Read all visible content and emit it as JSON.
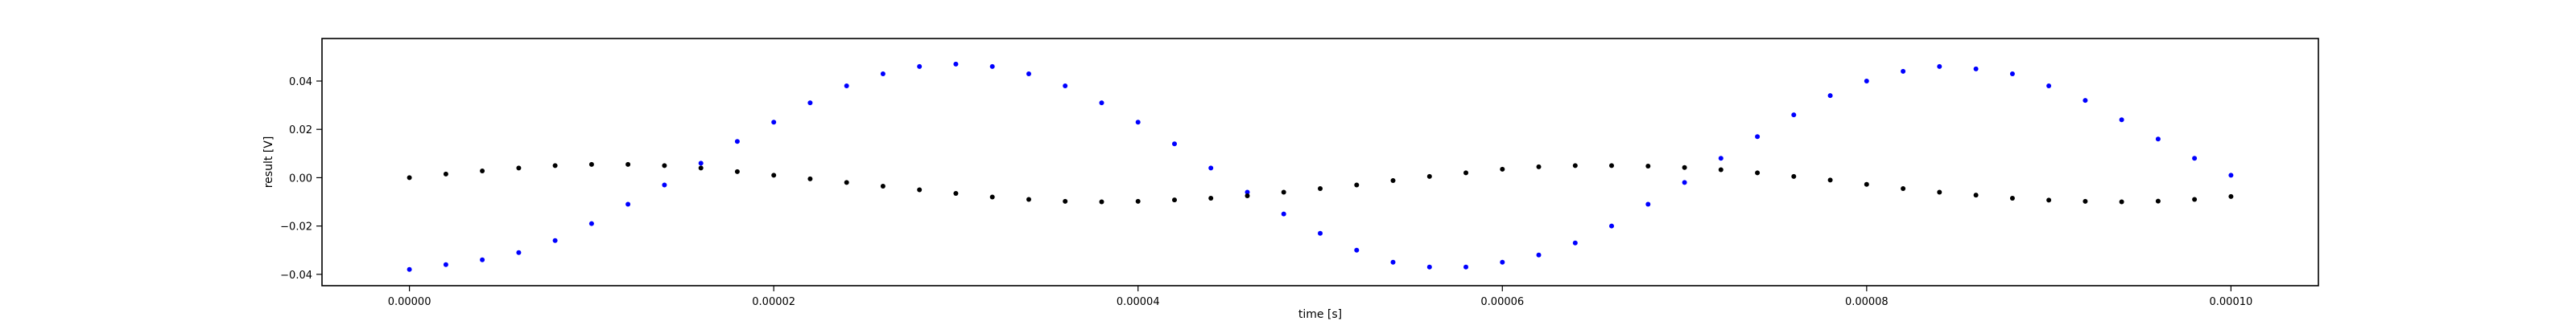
{
  "chart_data": {
    "type": "scatter",
    "title": "",
    "xlabel": "time [s]",
    "ylabel": "result [V]",
    "xlim": [
      -4.8e-06,
      0.0001048
    ],
    "ylim": [
      -0.0447,
      0.0576
    ],
    "grid": false,
    "x_ticks": [
      "0.00000",
      "0.00002",
      "0.00004",
      "0.00006",
      "0.00008",
      "0.00010"
    ],
    "y_ticks": [
      "−0.04",
      "−0.02",
      "0.00",
      "0.02",
      "0.04"
    ],
    "x_tick_values": [
      0,
      2e-05,
      4e-05,
      6e-05,
      8e-05,
      0.0001
    ],
    "y_tick_values": [
      -0.04,
      -0.02,
      0,
      0.02,
      0.04
    ],
    "series": [
      {
        "color": "#0000ff",
        "marker": "dot",
        "x": [
          0,
          2e-06,
          4e-06,
          6e-06,
          8e-06,
          1e-05,
          1.2e-05,
          1.4e-05,
          1.6e-05,
          1.8e-05,
          2e-05,
          2.2e-05,
          2.4e-05,
          2.6e-05,
          2.8e-05,
          3e-05,
          3.2e-05,
          3.4e-05,
          3.6e-05,
          3.8e-05,
          4e-05,
          4.2e-05,
          4.4e-05,
          4.6e-05,
          4.8e-05,
          5e-05,
          5.2e-05,
          5.4e-05,
          5.6e-05,
          5.8e-05,
          6e-05,
          6.2e-05,
          6.4e-05,
          6.6e-05,
          6.8e-05,
          7e-05,
          7.2e-05,
          7.4e-05,
          7.6e-05,
          7.8e-05,
          8e-05,
          8.2e-05,
          8.4e-05,
          8.6e-05,
          8.8e-05,
          9e-05,
          9.2e-05,
          9.4e-05,
          9.6e-05,
          9.8e-05,
          0.0001
        ],
        "y": [
          -0.038,
          -0.036,
          -0.034,
          -0.031,
          -0.026,
          -0.019,
          -0.011,
          -0.003,
          0.006,
          0.015,
          0.023,
          0.031,
          0.038,
          0.043,
          0.046,
          0.047,
          0.046,
          0.043,
          0.038,
          0.031,
          0.023,
          0.014,
          0.004,
          -0.006,
          -0.015,
          -0.023,
          -0.03,
          -0.035,
          -0.037,
          -0.037,
          -0.035,
          -0.032,
          -0.027,
          -0.02,
          -0.011,
          -0.002,
          0.008,
          0.017,
          0.026,
          0.034,
          0.04,
          0.044,
          0.046,
          0.045,
          0.043,
          0.038,
          0.032,
          0.024,
          0.016,
          0.008,
          0.001
        ]
      },
      {
        "color": "#000000",
        "marker": "dot",
        "x": [
          0,
          2e-06,
          4e-06,
          6e-06,
          8e-06,
          1e-05,
          1.2e-05,
          1.4e-05,
          1.6e-05,
          1.8e-05,
          2e-05,
          2.2e-05,
          2.4e-05,
          2.6e-05,
          2.8e-05,
          3e-05,
          3.2e-05,
          3.4e-05,
          3.6e-05,
          3.8e-05,
          4e-05,
          4.2e-05,
          4.4e-05,
          4.6e-05,
          4.8e-05,
          5e-05,
          5.2e-05,
          5.4e-05,
          5.6e-05,
          5.8e-05,
          6e-05,
          6.2e-05,
          6.4e-05,
          6.6e-05,
          6.8e-05,
          7e-05,
          7.2e-05,
          7.4e-05,
          7.6e-05,
          7.8e-05,
          8e-05,
          8.2e-05,
          8.4e-05,
          8.6e-05,
          8.8e-05,
          9e-05,
          9.2e-05,
          9.4e-05,
          9.6e-05,
          9.8e-05,
          0.0001
        ],
        "y": [
          0,
          0.0015,
          0.0028,
          0.004,
          0.005,
          0.0055,
          0.0055,
          0.005,
          0.004,
          0.0025,
          0.001,
          -0.0005,
          -0.002,
          -0.0035,
          -0.005,
          -0.0065,
          -0.008,
          -0.009,
          -0.0098,
          -0.01,
          -0.0098,
          -0.0092,
          -0.0085,
          -0.0075,
          -0.006,
          -0.0045,
          -0.003,
          -0.0012,
          0.0005,
          0.002,
          0.0035,
          0.0045,
          0.005,
          0.005,
          0.0048,
          0.0042,
          0.0033,
          0.002,
          0.0005,
          -0.001,
          -0.0028,
          -0.0045,
          -0.006,
          -0.0072,
          -0.0085,
          -0.0093,
          -0.0098,
          -0.01,
          -0.0097,
          -0.009,
          -0.0078
        ]
      }
    ]
  }
}
